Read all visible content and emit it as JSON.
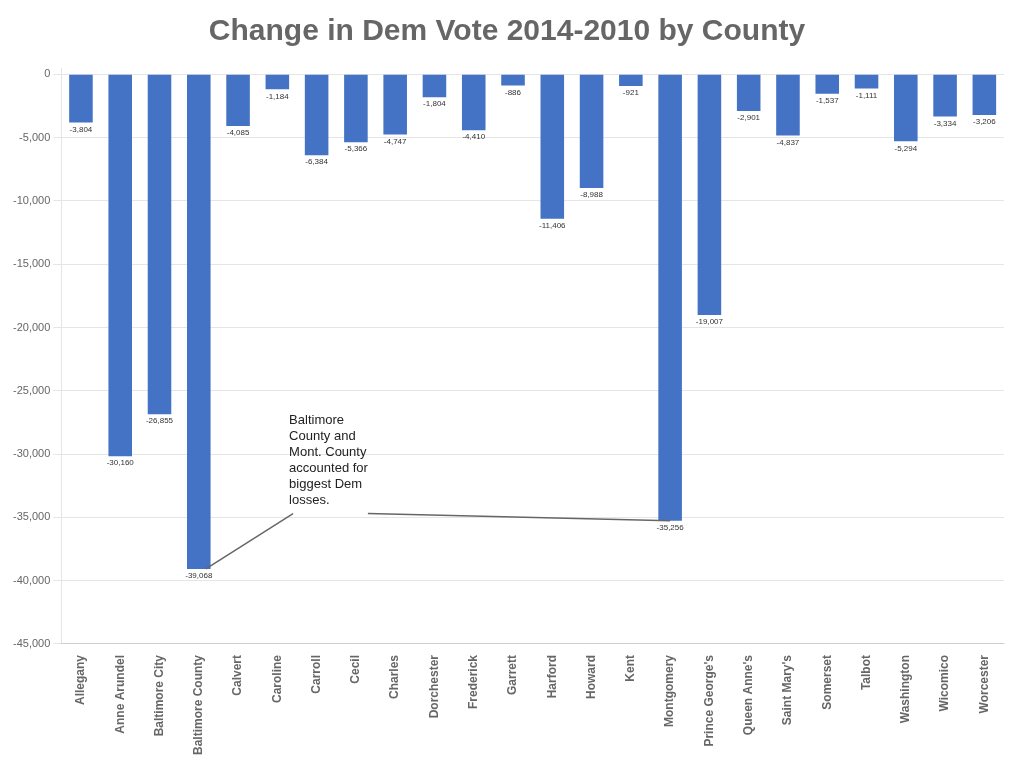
{
  "chart_data": {
    "type": "bar",
    "title": "Change in Dem Vote 2014-2010 by County",
    "categories": [
      "Allegany",
      "Anne Arundel",
      "Baltimore City",
      "Baltimore County",
      "Calvert",
      "Caroline",
      "Carroll",
      "Cecil",
      "Charles",
      "Dorchester",
      "Frederick",
      "Garrett",
      "Harford",
      "Howard",
      "Kent",
      "Montgomery",
      "Prince George's",
      "Queen Anne's",
      "Saint Mary's",
      "Somerset",
      "Talbot",
      "Washington",
      "Wicomico",
      "Worcester"
    ],
    "values": [
      -3804,
      -30160,
      -26855,
      -39068,
      -4085,
      -1184,
      -6384,
      -5366,
      -4747,
      -1804,
      -4410,
      -886,
      -11406,
      -8988,
      -921,
      -35256,
      -19007,
      -2901,
      -4837,
      -1537,
      -1111,
      -5294,
      -3334,
      -3206
    ],
    "value_labels": [
      "-3,804",
      "-30,160",
      "-26,855",
      "-39,068",
      "-4,085",
      "-1,184",
      "-6,384",
      "-5,366",
      "-4,747",
      "-1,804",
      "-4,410",
      "-886",
      "-11,406",
      "-8,988",
      "-921",
      "-35,256",
      "-19,007",
      "-2,901",
      "-4,837",
      "-1,537",
      "-1,111",
      "-5,294",
      "-3,334",
      "-3,206"
    ],
    "data_labels": true,
    "color": "#4472C4",
    "ylim": [
      -45000,
      500
    ],
    "yticks": [
      0,
      {
        "value": -5000,
        "label": "-5,000"
      },
      {
        "value": -10000,
        "label": "-10,000"
      },
      {
        "value": -15000,
        "label": "-15,000"
      },
      {
        "value": -20000,
        "label": "-20,000"
      },
      {
        "value": -25000,
        "label": "-25,000"
      },
      {
        "value": -30000,
        "label": "-30,000"
      },
      {
        "value": -35000,
        "label": "-35,000"
      },
      {
        "value": -40000,
        "label": "-40,000"
      },
      {
        "value": -45000,
        "label": "-45,000"
      }
    ],
    "grid": true,
    "annotations": [
      {
        "text": "Baltimore\nCounty and\nMont. County\naccounted for\nbiggest Dem\nlosses.",
        "points_to": [
          "Baltimore County",
          "Montgomery"
        ]
      }
    ]
  }
}
